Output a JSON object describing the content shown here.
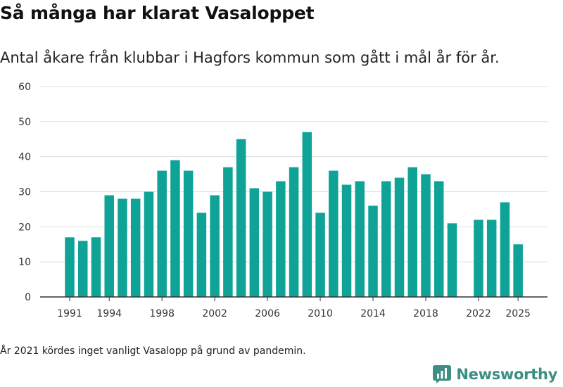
{
  "header": {
    "title": "Så många har klarat Vasaloppet",
    "subtitle": "Antal åkare från klubbar i Hagfors kommun som gått i mål år för år."
  },
  "footer": {
    "note": "År 2021 kördes inget vanligt Vasalopp på grund av pandemin.",
    "brand": "Newsworthy"
  },
  "chart_data": {
    "type": "bar",
    "title": "Så många har klarat Vasaloppet",
    "subtitle": "Antal åkare från klubbar i Hagfors kommun som gått i mål år för år.",
    "xlabel": "",
    "ylabel": "",
    "categories": [
      1991,
      1992,
      1993,
      1994,
      1995,
      1996,
      1997,
      1998,
      1999,
      2000,
      2001,
      2002,
      2003,
      2004,
      2005,
      2006,
      2007,
      2008,
      2009,
      2010,
      2011,
      2012,
      2013,
      2014,
      2015,
      2016,
      2017,
      2018,
      2019,
      2020,
      2021,
      2022,
      2023,
      2024,
      2025
    ],
    "values": [
      17,
      16,
      17,
      29,
      28,
      28,
      30,
      36,
      39,
      36,
      24,
      29,
      37,
      45,
      31,
      30,
      33,
      37,
      47,
      24,
      36,
      32,
      33,
      26,
      33,
      34,
      37,
      35,
      33,
      21,
      null,
      22,
      22,
      27,
      15
    ],
    "x_tick_labels": [
      "1991",
      "1994",
      "1998",
      "2002",
      "2006",
      "2010",
      "2014",
      "2018",
      "2022",
      "2025"
    ],
    "y_ticks": [
      0,
      10,
      20,
      30,
      40,
      50,
      60
    ],
    "ylim": [
      0,
      60
    ],
    "grid": true,
    "legend": "none",
    "colors": {
      "bar": "#0fa398",
      "grid": "#dddddd",
      "axis": "#333333",
      "brand": "#3d8f82"
    }
  }
}
